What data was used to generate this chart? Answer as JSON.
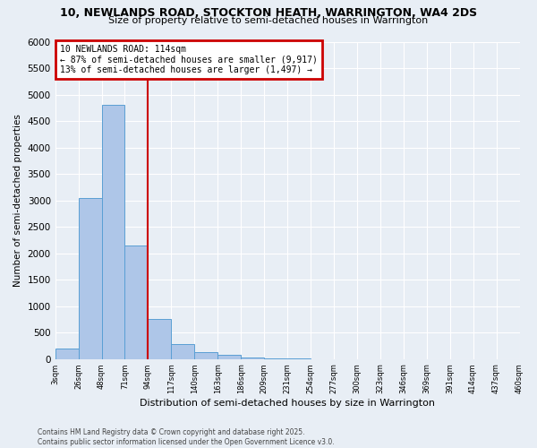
{
  "title_line1": "10, NEWLANDS ROAD, STOCKTON HEATH, WARRINGTON, WA4 2DS",
  "title_line2": "Size of property relative to semi-detached houses in Warrington",
  "xlabel": "Distribution of semi-detached houses by size in Warrington",
  "ylabel": "Number of semi-detached properties",
  "footnote": "Contains HM Land Registry data © Crown copyright and database right 2025.\nContains public sector information licensed under the Open Government Licence v3.0.",
  "bin_labels": [
    "3sqm",
    "26sqm",
    "48sqm",
    "71sqm",
    "94sqm",
    "117sqm",
    "140sqm",
    "163sqm",
    "186sqm",
    "209sqm",
    "231sqm",
    "254sqm",
    "277sqm",
    "300sqm",
    "323sqm",
    "346sqm",
    "369sqm",
    "391sqm",
    "414sqm",
    "437sqm",
    "460sqm"
  ],
  "bar_values": [
    200,
    3050,
    4800,
    2150,
    750,
    280,
    130,
    80,
    30,
    10,
    5,
    3,
    2,
    0,
    0,
    0,
    0,
    0,
    0,
    0
  ],
  "annotation_text": "10 NEWLANDS ROAD: 114sqm\n← 87% of semi-detached houses are smaller (9,917)\n13% of semi-detached houses are larger (1,497) →",
  "bar_color": "#aec6e8",
  "bar_edge_color": "#5a9fd4",
  "vline_color": "#cc0000",
  "annotation_box_color": "#cc0000",
  "background_color": "#e8eef5",
  "ylim": [
    0,
    6000
  ],
  "yticks": [
    0,
    500,
    1000,
    1500,
    2000,
    2500,
    3000,
    3500,
    4000,
    4500,
    5000,
    5500,
    6000
  ],
  "vertical_line_x": 4.0
}
